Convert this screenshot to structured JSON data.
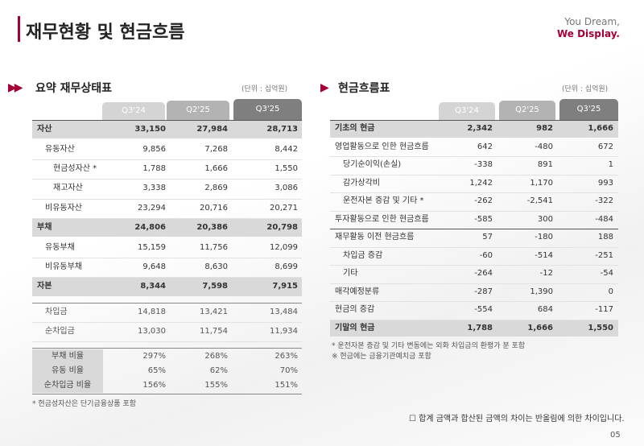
{
  "header": {
    "title": "재무현황 및 현금흐름",
    "logo": [
      "You Dream,",
      "We Display."
    ]
  },
  "balance_sheet": {
    "title": "요약 재무상태표",
    "unit": "(단위 : 십억원)",
    "columns": [
      "Q3'24",
      "Q2'25",
      "Q3'25"
    ],
    "rows": [
      {
        "label": "자산",
        "values": [
          "33,150",
          "27,984",
          "28,713"
        ],
        "emphasis": true,
        "indent": 0
      },
      {
        "label": "유동자산",
        "values": [
          "9,856",
          "7,268",
          "8,442"
        ],
        "emphasis": false,
        "indent": 1
      },
      {
        "label": "현금성자산 *",
        "values": [
          "1,788",
          "1,666",
          "1,550"
        ],
        "emphasis": false,
        "indent": 2
      },
      {
        "label": "재고자산",
        "values": [
          "3,338",
          "2,869",
          "3,086"
        ],
        "emphasis": false,
        "indent": 2
      },
      {
        "label": "비유동자산",
        "values": [
          "23,294",
          "20,716",
          "20,271"
        ],
        "emphasis": false,
        "indent": 1
      },
      {
        "label": "부채",
        "values": [
          "24,806",
          "20,386",
          "20,798"
        ],
        "emphasis": true,
        "indent": 0
      },
      {
        "label": "유동부채",
        "values": [
          "15,159",
          "11,756",
          "12,099"
        ],
        "emphasis": false,
        "indent": 1
      },
      {
        "label": "비유동부채",
        "values": [
          "9,648",
          "8,630",
          "8,699"
        ],
        "emphasis": false,
        "indent": 1
      },
      {
        "label": "자본",
        "values": [
          "8,344",
          "7,598",
          "7,915"
        ],
        "emphasis": true,
        "indent": 0
      }
    ],
    "borrowings": [
      {
        "label": "차입금",
        "values": [
          "14,818",
          "13,421",
          "13,484"
        ]
      },
      {
        "label": "순차입금",
        "values": [
          "13,030",
          "11,754",
          "11,934"
        ]
      }
    ],
    "ratios": [
      {
        "label": "부채 비율",
        "values": [
          "297%",
          "268%",
          "263%"
        ]
      },
      {
        "label": "유동 비율",
        "values": [
          "65%",
          "62%",
          "70%"
        ]
      },
      {
        "label": "순차입금 비율",
        "values": [
          "156%",
          "155%",
          "151%"
        ]
      }
    ],
    "note": "* 현금성자산은 단기금융상품 포함"
  },
  "cash_flow": {
    "title": "현금흐름표",
    "unit": "(단위 : 십억원)",
    "columns": [
      "Q3'24",
      "Q2'25",
      "Q3'25"
    ],
    "rows": [
      {
        "label": "기초의 현금",
        "values": [
          "2,342",
          "982",
          "1,666"
        ],
        "emphasis": true,
        "indent": 0
      },
      {
        "label": "영업활동으로 인한 현금흐름",
        "values": [
          "642",
          "-480",
          "672"
        ],
        "emphasis": false,
        "indent": 0
      },
      {
        "label": "당기순이익(손실)",
        "values": [
          "-338",
          "891",
          "1"
        ],
        "emphasis": false,
        "indent": 1
      },
      {
        "label": "감가상각비",
        "values": [
          "1,242",
          "1,170",
          "993"
        ],
        "emphasis": false,
        "indent": 1
      },
      {
        "label": "운전자본 증감 및 기타 *",
        "values": [
          "-262",
          "-2,541",
          "-322"
        ],
        "emphasis": false,
        "indent": 1
      },
      {
        "label": "투자활동으로 인한 현금흐름",
        "values": [
          "-585",
          "300",
          "-484"
        ],
        "emphasis": false,
        "indent": 0
      },
      {
        "label": "재무활동 이전 현금흐름",
        "values": [
          "57",
          "-180",
          "188"
        ],
        "emphasis": false,
        "indent": 0
      },
      {
        "label": "차입금 증감",
        "values": [
          "-60",
          "-514",
          "-251"
        ],
        "emphasis": false,
        "indent": 1
      },
      {
        "label": "기타",
        "values": [
          "-264",
          "-12",
          "-54"
        ],
        "emphasis": false,
        "indent": 1
      },
      {
        "label": "매각예정분류",
        "values": [
          "-287",
          "1,390",
          "0"
        ],
        "emphasis": false,
        "indent": 0
      },
      {
        "label": "현금의 증감",
        "values": [
          "-554",
          "684",
          "-117"
        ],
        "emphasis": false,
        "indent": 0
      },
      {
        "label": "기말의 현금",
        "values": [
          "1,788",
          "1,666",
          "1,550"
        ],
        "emphasis": true,
        "indent": 0
      }
    ],
    "notes": [
      "* 운전자본 증감 및 기타 변동에는 외화 차입금의 환평가 분 포함",
      "※ 현금에는 금융기관예치금 포함"
    ]
  },
  "footer": {
    "note": "합계 금액과 합산된 금액의 차이는 반올림에 의한 차이입니다.",
    "page": "05"
  }
}
